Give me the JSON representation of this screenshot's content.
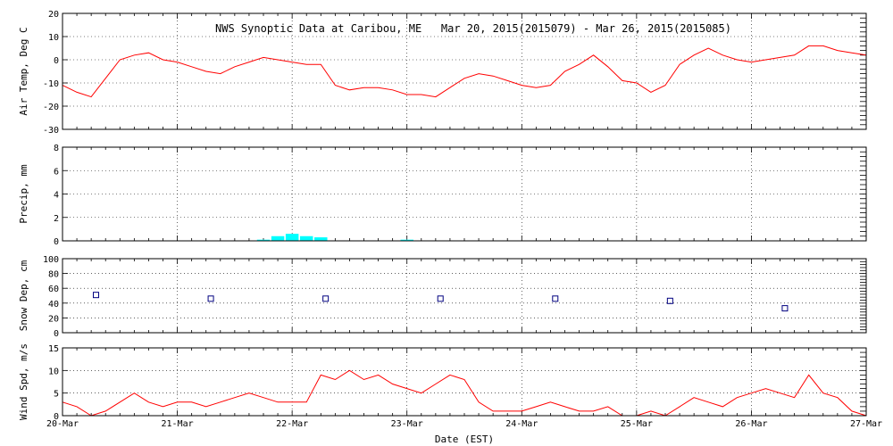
{
  "chart_data": {
    "title": "NWS Synoptic Data at Caribou, ME   Mar 20, 2015(2015079) - Mar 26, 2015(2015085)",
    "xlabel": "Date (EST)",
    "x_ticks": [
      "20-Mar",
      "21-Mar",
      "22-Mar",
      "23-Mar",
      "24-Mar",
      "25-Mar",
      "26-Mar",
      "27-Mar"
    ],
    "xlim": [
      "2015-03-20",
      "2015-03-27"
    ],
    "panels": [
      {
        "type": "line",
        "ylabel": "Air Temp, Deg C",
        "ylim": [
          -30,
          20
        ],
        "y_ticks": [
          20,
          10,
          0,
          -10,
          -20,
          -30
        ],
        "color": "#ff0000",
        "x": [
          "2015-03-20T00:00",
          "2015-03-20T03:00",
          "2015-03-20T06:00",
          "2015-03-20T09:00",
          "2015-03-20T12:00",
          "2015-03-20T15:00",
          "2015-03-20T18:00",
          "2015-03-20T21:00",
          "2015-03-21T00:00",
          "2015-03-21T03:00",
          "2015-03-21T06:00",
          "2015-03-21T09:00",
          "2015-03-21T12:00",
          "2015-03-21T15:00",
          "2015-03-21T18:00",
          "2015-03-21T21:00",
          "2015-03-22T00:00",
          "2015-03-22T03:00",
          "2015-03-22T06:00",
          "2015-03-22T09:00",
          "2015-03-22T12:00",
          "2015-03-22T15:00",
          "2015-03-22T18:00",
          "2015-03-22T21:00",
          "2015-03-23T00:00",
          "2015-03-23T03:00",
          "2015-03-23T06:00",
          "2015-03-23T09:00",
          "2015-03-23T12:00",
          "2015-03-23T15:00",
          "2015-03-23T18:00",
          "2015-03-23T21:00",
          "2015-03-24T00:00",
          "2015-03-24T03:00",
          "2015-03-24T06:00",
          "2015-03-24T09:00",
          "2015-03-24T12:00",
          "2015-03-24T15:00",
          "2015-03-24T18:00",
          "2015-03-24T21:00",
          "2015-03-25T00:00",
          "2015-03-25T03:00",
          "2015-03-25T06:00",
          "2015-03-25T09:00",
          "2015-03-25T12:00",
          "2015-03-25T15:00",
          "2015-03-25T18:00",
          "2015-03-25T21:00",
          "2015-03-26T00:00",
          "2015-03-26T03:00",
          "2015-03-26T06:00",
          "2015-03-26T09:00",
          "2015-03-26T12:00",
          "2015-03-26T15:00",
          "2015-03-26T18:00",
          "2015-03-26T21:00",
          "2015-03-27T00:00"
        ],
        "values": [
          -11,
          -14,
          -16,
          -8,
          0,
          2,
          3,
          0,
          -1,
          -3,
          -5,
          -6,
          -3,
          -1,
          1,
          0,
          -1,
          -2,
          -2,
          -11,
          -13,
          -12,
          -12,
          -13,
          -15,
          -15,
          -16,
          -12,
          -8,
          -6,
          -7,
          -9,
          -11,
          -12,
          -11,
          -5,
          -2,
          2,
          -3,
          -9,
          -10,
          -14,
          -11,
          -2,
          2,
          5,
          2,
          0,
          -1,
          0,
          1,
          2,
          6,
          6,
          4,
          3,
          2
        ]
      },
      {
        "type": "bar",
        "ylabel": "Precip, mm",
        "ylim": [
          0,
          8
        ],
        "y_ticks": [
          8,
          6,
          4,
          2,
          0
        ],
        "color": "#00ffff",
        "x": [
          "2015-03-21T18:00",
          "2015-03-21T21:00",
          "2015-03-22T00:00",
          "2015-03-22T03:00",
          "2015-03-22T06:00",
          "2015-03-23T00:00"
        ],
        "values": [
          0.1,
          0.4,
          0.6,
          0.4,
          0.3,
          0.1
        ]
      },
      {
        "type": "scatter",
        "ylabel": "Snow Dep, cm",
        "ylim": [
          0,
          100
        ],
        "y_ticks": [
          100,
          80,
          60,
          40,
          20,
          0
        ],
        "color": "#000080",
        "x": [
          "2015-03-20T07:00",
          "2015-03-21T07:00",
          "2015-03-22T07:00",
          "2015-03-23T07:00",
          "2015-03-24T07:00",
          "2015-03-25T07:00",
          "2015-03-26T07:00"
        ],
        "values": [
          51,
          46,
          46,
          46,
          46,
          43,
          33
        ]
      },
      {
        "type": "line",
        "ylabel": "Wind Spd, m/s",
        "ylim": [
          0,
          15
        ],
        "y_ticks": [
          15,
          10,
          5,
          0
        ],
        "color": "#ff0000",
        "x": [
          "2015-03-20T00:00",
          "2015-03-20T03:00",
          "2015-03-20T06:00",
          "2015-03-20T09:00",
          "2015-03-20T12:00",
          "2015-03-20T15:00",
          "2015-03-20T18:00",
          "2015-03-20T21:00",
          "2015-03-21T00:00",
          "2015-03-21T03:00",
          "2015-03-21T06:00",
          "2015-03-21T09:00",
          "2015-03-21T12:00",
          "2015-03-21T15:00",
          "2015-03-21T18:00",
          "2015-03-21T21:00",
          "2015-03-22T00:00",
          "2015-03-22T03:00",
          "2015-03-22T06:00",
          "2015-03-22T09:00",
          "2015-03-22T12:00",
          "2015-03-22T15:00",
          "2015-03-22T18:00",
          "2015-03-22T21:00",
          "2015-03-23T00:00",
          "2015-03-23T03:00",
          "2015-03-23T06:00",
          "2015-03-23T09:00",
          "2015-03-23T12:00",
          "2015-03-23T15:00",
          "2015-03-23T18:00",
          "2015-03-23T21:00",
          "2015-03-24T00:00",
          "2015-03-24T03:00",
          "2015-03-24T06:00",
          "2015-03-24T09:00",
          "2015-03-24T12:00",
          "2015-03-24T15:00",
          "2015-03-24T18:00",
          "2015-03-24T21:00",
          "2015-03-25T00:00",
          "2015-03-25T03:00",
          "2015-03-25T06:00",
          "2015-03-25T09:00",
          "2015-03-25T12:00",
          "2015-03-25T15:00",
          "2015-03-25T18:00",
          "2015-03-25T21:00",
          "2015-03-26T00:00",
          "2015-03-26T03:00",
          "2015-03-26T06:00",
          "2015-03-26T09:00",
          "2015-03-26T12:00",
          "2015-03-26T15:00",
          "2015-03-26T18:00",
          "2015-03-26T21:00",
          "2015-03-27T00:00"
        ],
        "values": [
          3,
          2,
          0,
          1,
          3,
          5,
          3,
          2,
          3,
          3,
          2,
          3,
          4,
          5,
          4,
          3,
          3,
          3,
          9,
          8,
          10,
          8,
          9,
          7,
          6,
          5,
          7,
          9,
          8,
          3,
          1,
          1,
          1,
          2,
          3,
          2,
          1,
          1,
          2,
          0,
          0,
          1,
          0,
          2,
          4,
          3,
          2,
          4,
          5,
          6,
          5,
          4,
          9,
          5,
          4,
          1,
          0
        ]
      }
    ],
    "grid": true
  }
}
